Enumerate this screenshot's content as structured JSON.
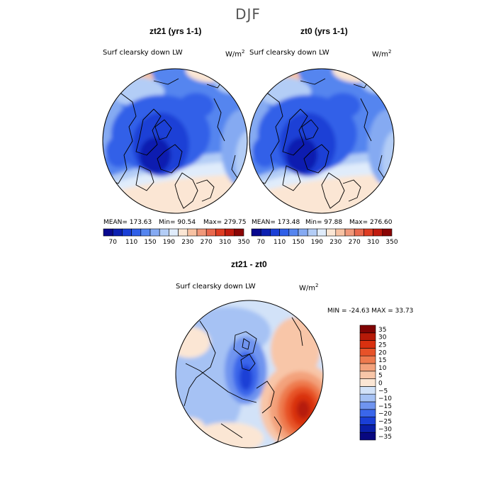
{
  "title": "DJF",
  "panels": [
    {
      "title": "zt21 (yrs 1-1)",
      "field": "Surf clearsky down LW",
      "units_base": "W/m",
      "units_exp": "2",
      "stats": {
        "mean": "MEAN= 173.63",
        "min": "Min=  90.54",
        "max": "Max= 279.75"
      }
    },
    {
      "title": "zt0 (yrs 1-1)",
      "field": "Surf clearsky down LW",
      "units_base": "W/m",
      "units_exp": "2",
      "stats": {
        "mean": "MEAN= 173.48",
        "min": "Min=  97.88",
        "max": "Max= 276.60"
      }
    }
  ],
  "top_colorbar": {
    "colors": [
      "#08088f",
      "#0b1fb0",
      "#1a3fd6",
      "#3060e8",
      "#5585ef",
      "#85aaf2",
      "#b3cdf6",
      "#e0ecfb",
      "#fbe6d4",
      "#f7c2a3",
      "#f0987a",
      "#e8684d",
      "#de3c22",
      "#c01a0e",
      "#8a0505"
    ],
    "labels": [
      "70",
      "110",
      "150",
      "190",
      "230",
      "270",
      "310",
      "350"
    ]
  },
  "diff_panel": {
    "title": "zt21 - zt0",
    "field": "Surf clearsky down LW",
    "units_base": "W/m",
    "units_exp": "2",
    "minmax": "MIN = -24.63 MAX =  33.73"
  },
  "diff_colorbar": {
    "colors": [
      "#080880",
      "#0a1fa8",
      "#1a3fd6",
      "#3a66ea",
      "#6f94ef",
      "#a6c2f4",
      "#d2e2f8",
      "#fbe6d4",
      "#f8c6a8",
      "#f3a27c",
      "#ee7a4e",
      "#e75228",
      "#d9300f",
      "#b61a08",
      "#800404"
    ],
    "labels": [
      "35",
      "30",
      "25",
      "20",
      "15",
      "10",
      "5",
      "0",
      "−5",
      "−10",
      "−15",
      "−20",
      "−25",
      "−30",
      "−35"
    ]
  }
}
